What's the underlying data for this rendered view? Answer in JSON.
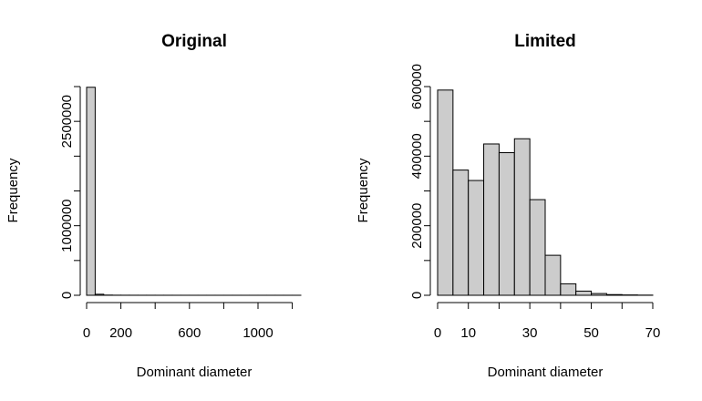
{
  "chart_data": [
    {
      "type": "bar",
      "title": "Original",
      "xlabel": "Dominant diameter",
      "ylabel": "Frequency",
      "bin_width": 50,
      "bins_start": 0,
      "values": [
        2990000,
        15000,
        3000,
        1500,
        1000,
        800,
        700,
        600,
        500,
        500,
        400,
        400,
        300,
        300,
        300,
        200,
        200,
        200,
        200,
        200,
        200,
        200,
        200,
        200,
        200
      ],
      "xticks": [
        0,
        200,
        600,
        1000
      ],
      "xtick_marks": [
        0,
        200,
        400,
        600,
        800,
        1000,
        1200
      ],
      "xlim": [
        0,
        1250
      ],
      "yticks": [
        0,
        1000000,
        2500000
      ],
      "ytick_marks": [
        0,
        500000,
        1000000,
        1500000,
        2000000,
        2500000,
        3000000
      ],
      "ylim": [
        0,
        3000000
      ],
      "grid": false
    },
    {
      "type": "bar",
      "title": "Limited",
      "xlabel": "Dominant diameter",
      "ylabel": "Frequency",
      "bin_width": 5,
      "bins_start": 0,
      "values": [
        590000,
        360000,
        330000,
        435000,
        410000,
        450000,
        275000,
        115000,
        33000,
        12000,
        5000,
        2000,
        1000,
        500
      ],
      "xticks": [
        0,
        10,
        30,
        50,
        70
      ],
      "xtick_marks": [
        0,
        10,
        20,
        30,
        40,
        50,
        60,
        70
      ],
      "xlim": [
        0,
        70
      ],
      "yticks": [
        0,
        200000,
        400000,
        600000
      ],
      "ytick_marks": [
        0,
        100000,
        200000,
        300000,
        400000,
        500000,
        600000
      ],
      "ylim": [
        0,
        600000
      ],
      "grid": false
    }
  ]
}
